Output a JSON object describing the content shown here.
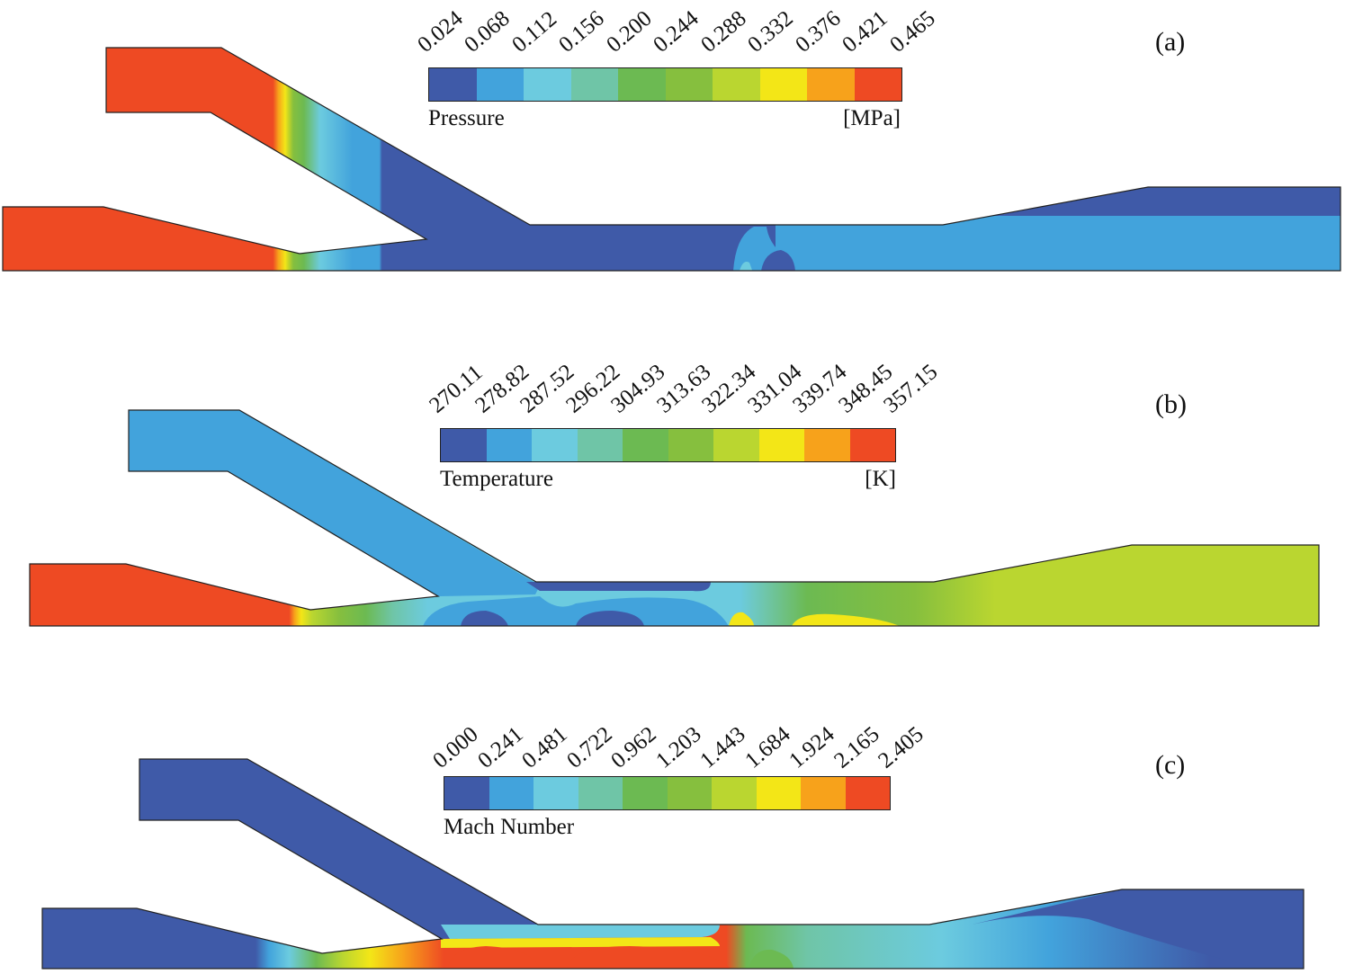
{
  "colormap": [
    "#3f5aa8",
    "#42a3dc",
    "#6ccbdf",
    "#6fc5a7",
    "#6cba52",
    "#86bf3e",
    "#bad630",
    "#f3e617",
    "#f7a21b",
    "#ee4a23"
  ],
  "panels": [
    {
      "label": "(a)",
      "legend_title": "Pressure",
      "legend_unit": "[MPa]",
      "ticks": [
        "0.024",
        "0.068",
        "0.112",
        "0.156",
        "0.200",
        "0.244",
        "0.288",
        "0.332",
        "0.376",
        "0.421",
        "0.465"
      ]
    },
    {
      "label": "(b)",
      "legend_title": "Temperature",
      "legend_unit": "[K]",
      "ticks": [
        "270.11",
        "278.82",
        "287.52",
        "296.22",
        "304.93",
        "313.63",
        "322.34",
        "331.04",
        "339.74",
        "348.45",
        "357.15"
      ]
    },
    {
      "label": "(c)",
      "legend_title": "Mach Number",
      "legend_unit": "",
      "ticks": [
        "0.000",
        "0.241",
        "0.481",
        "0.722",
        "0.962",
        "1.203",
        "1.443",
        "1.684",
        "1.924",
        "2.165",
        "2.405"
      ]
    }
  ]
}
